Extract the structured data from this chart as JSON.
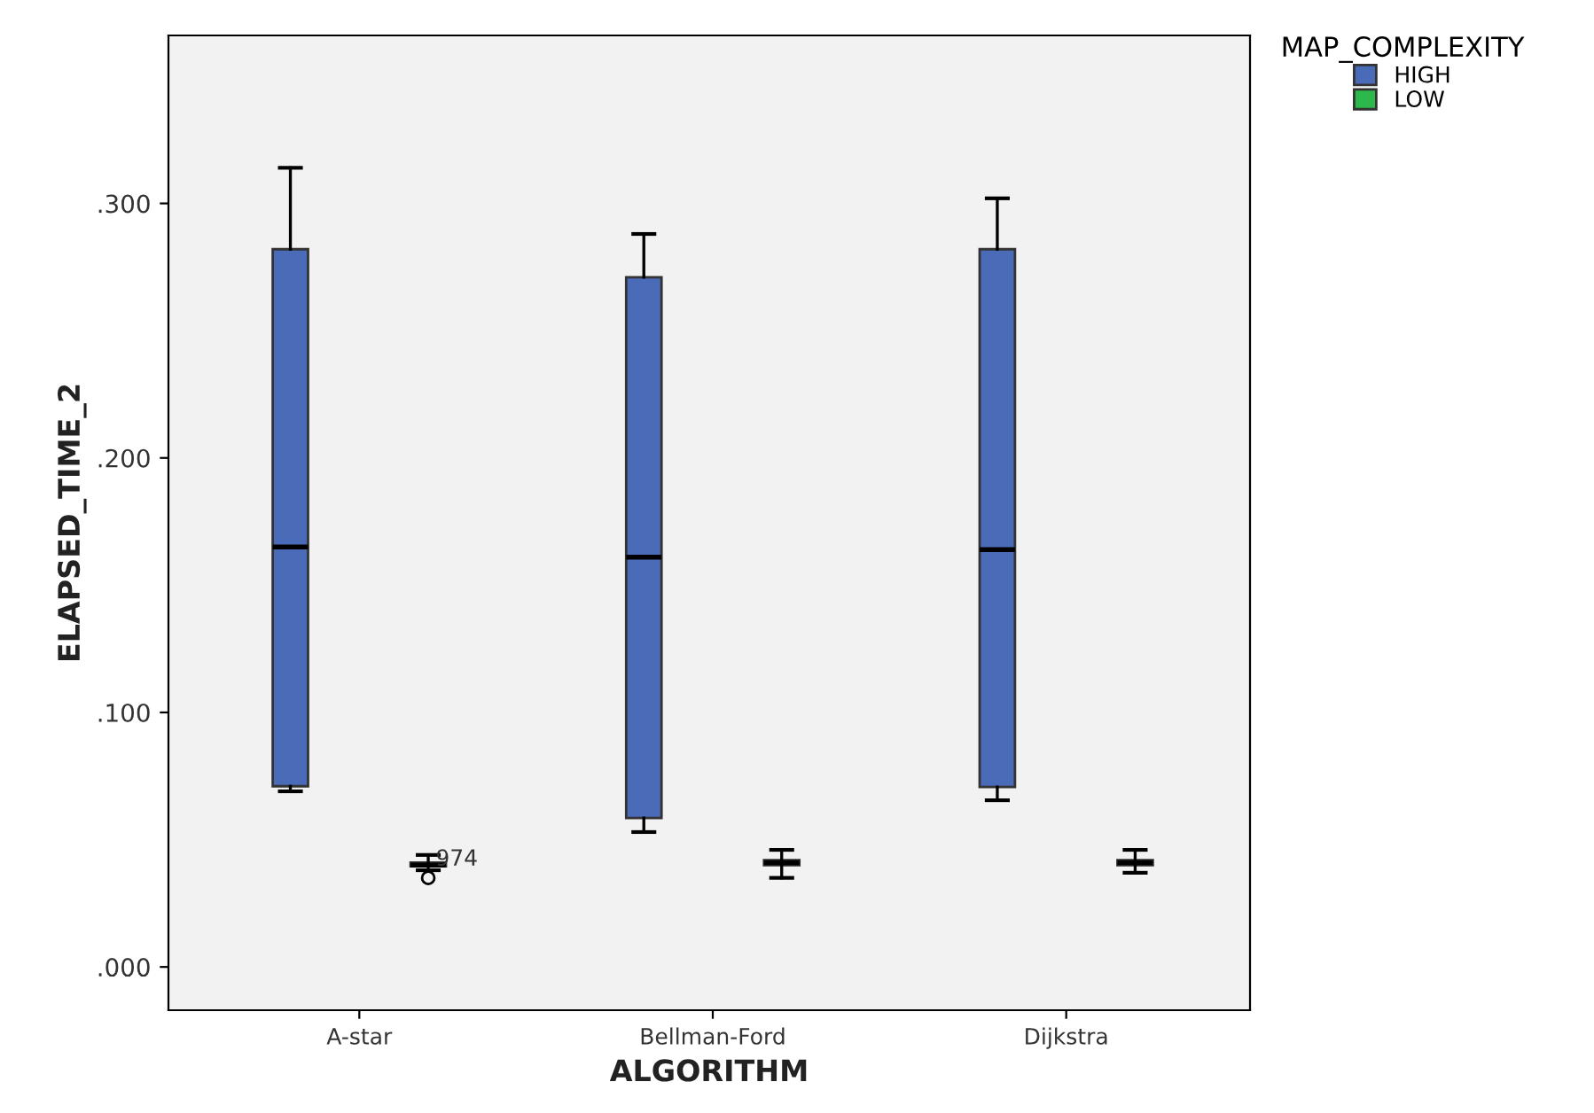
{
  "chart_data": {
    "type": "box",
    "xlabel": "ALGORITHM",
    "ylabel": "ELAPSED_TIME_2",
    "legend_title": "MAP_COMPLEXITY",
    "categories": [
      "A-star",
      "Bellman-Ford",
      "Dijkstra"
    ],
    "series": [
      {
        "name": "HIGH",
        "color": "#4a6bb8",
        "boxes": [
          {
            "low": 0.069,
            "q1": 0.071,
            "median": 0.165,
            "q3": 0.282,
            "high": 0.314
          },
          {
            "low": 0.053,
            "q1": 0.0585,
            "median": 0.161,
            "q3": 0.271,
            "high": 0.288
          },
          {
            "low": 0.0655,
            "q1": 0.0707,
            "median": 0.164,
            "q3": 0.282,
            "high": 0.302
          }
        ]
      },
      {
        "name": "LOW",
        "color": "#2db84c",
        "boxes": [
          {
            "low": 0.038,
            "q1": 0.0395,
            "median": 0.04,
            "q3": 0.041,
            "high": 0.044,
            "outliers": [
              0.035
            ]
          },
          {
            "low": 0.035,
            "q1": 0.04,
            "median": 0.041,
            "q3": 0.042,
            "high": 0.046
          },
          {
            "low": 0.037,
            "q1": 0.04,
            "median": 0.041,
            "q3": 0.042,
            "high": 0.046
          }
        ]
      }
    ],
    "annotations": [
      "974"
    ],
    "ylim": [
      -0.017,
      0.366
    ],
    "yticks": [
      {
        "value": 0,
        "label": ".000"
      },
      {
        "value": 0.1,
        "label": ".100"
      },
      {
        "value": 0.2,
        "label": ".200"
      },
      {
        "value": 0.3,
        "label": ".300"
      }
    ],
    "legend": "top right",
    "grid": false
  }
}
